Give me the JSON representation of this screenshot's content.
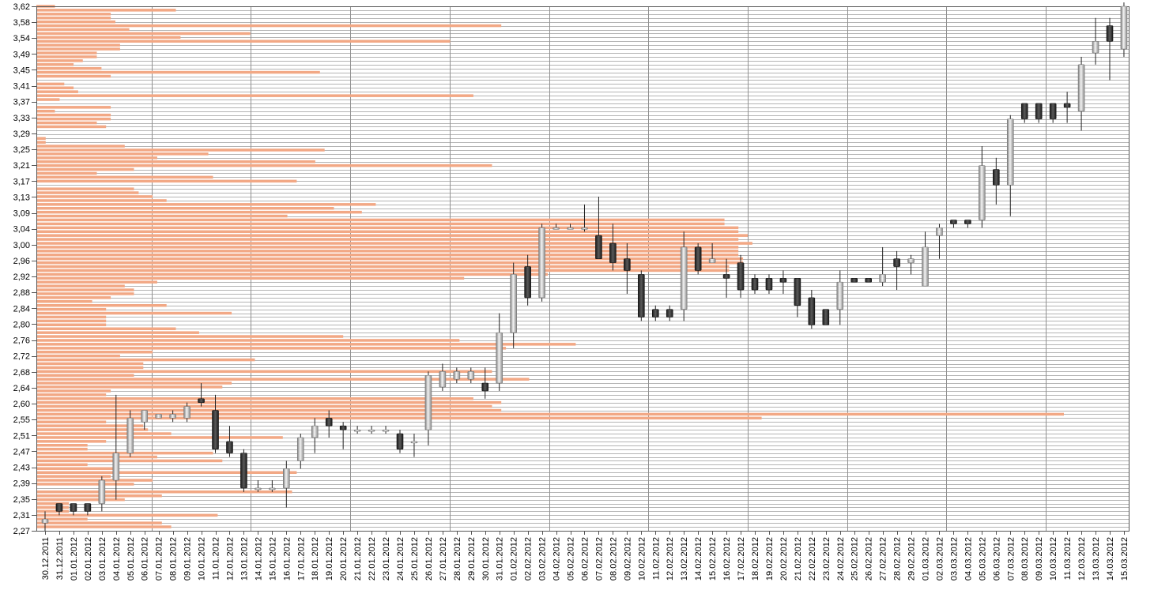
{
  "chart_data": {
    "type": "candlestick",
    "title": "",
    "xlabel": "",
    "ylabel": "",
    "ylim": [
      2.27,
      3.62
    ],
    "ytick_labels": [
      "3,62",
      "3,58",
      "3,54",
      "3,49",
      "3,45",
      "3,41",
      "3,37",
      "3,33",
      "3,29",
      "3,25",
      "3,21",
      "3,17",
      "3,13",
      "3,09",
      "3,04",
      "3,00",
      "2,96",
      "2,92",
      "2,88",
      "2,84",
      "2,80",
      "2,76",
      "2,72",
      "2,68",
      "2,64",
      "2,60",
      "2,55",
      "2,51",
      "2,47",
      "2,43",
      "2,39",
      "2,35",
      "2,31",
      "2,27"
    ],
    "categories": [
      "30.12.2011",
      "31.12.2011",
      "01.01.2012",
      "02.01.2012",
      "03.01.2012",
      "04.01.2012",
      "05.01.2012",
      "06.01.2012",
      "07.01.2012",
      "08.01.2012",
      "09.01.2012",
      "10.01.2012",
      "11.01.2012",
      "12.01.2012",
      "13.01.2012",
      "14.01.2012",
      "15.01.2012",
      "16.01.2012",
      "17.01.2012",
      "18.01.2012",
      "19.01.2012",
      "20.01.2012",
      "21.01.2012",
      "22.01.2012",
      "23.01.2012",
      "24.01.2012",
      "25.01.2012",
      "26.01.2012",
      "27.01.2012",
      "28.01.2012",
      "29.01.2012",
      "30.01.2012",
      "31.01.2012",
      "01.02.2012",
      "02.02.2012",
      "03.02.2012",
      "04.02.2012",
      "05.02.2012",
      "06.02.2012",
      "07.02.2012",
      "08.02.2012",
      "09.02.2012",
      "10.02.2012",
      "11.02.2012",
      "12.02.2012",
      "13.02.2012",
      "14.02.2012",
      "15.02.2012",
      "16.02.2012",
      "17.02.2012",
      "18.02.2012",
      "19.02.2012",
      "20.02.2012",
      "21.02.2012",
      "22.02.2012",
      "23.02.2012",
      "24.02.2012",
      "25.02.2012",
      "26.02.2012",
      "27.02.2012",
      "28.02.2012",
      "29.02.2012",
      "01.03.2012",
      "02.03.2012",
      "03.03.2012",
      "04.03.2012",
      "05.03.2012",
      "06.03.2012",
      "07.03.2012",
      "08.03.2012",
      "09.03.2012",
      "10.03.2012",
      "11.03.2012",
      "12.03.2012",
      "13.03.2012",
      "14.03.2012",
      "15.03.2012"
    ],
    "candles": [
      {
        "o": 2.29,
        "h": 2.32,
        "l": 2.27,
        "c": 2.3
      },
      {
        "o": 2.34,
        "h": 2.34,
        "l": 2.31,
        "c": 2.32
      },
      {
        "o": 2.34,
        "h": 2.34,
        "l": 2.31,
        "c": 2.32
      },
      {
        "o": 2.34,
        "h": 2.34,
        "l": 2.31,
        "c": 2.32
      },
      {
        "o": 2.34,
        "h": 2.41,
        "l": 2.32,
        "c": 2.4
      },
      {
        "o": 2.4,
        "h": 2.62,
        "l": 2.35,
        "c": 2.47
      },
      {
        "o": 2.47,
        "h": 2.58,
        "l": 2.46,
        "c": 2.56
      },
      {
        "o": 2.55,
        "h": 2.58,
        "l": 2.53,
        "c": 2.58
      },
      {
        "o": 2.56,
        "h": 2.57,
        "l": 2.56,
        "c": 2.57
      },
      {
        "o": 2.56,
        "h": 2.58,
        "l": 2.55,
        "c": 2.57
      },
      {
        "o": 2.56,
        "h": 2.6,
        "l": 2.55,
        "c": 2.59
      },
      {
        "o": 2.61,
        "h": 2.65,
        "l": 2.59,
        "c": 2.6
      },
      {
        "o": 2.58,
        "h": 2.62,
        "l": 2.47,
        "c": 2.48
      },
      {
        "o": 2.5,
        "h": 2.54,
        "l": 2.46,
        "c": 2.47
      },
      {
        "o": 2.47,
        "h": 2.48,
        "l": 2.37,
        "c": 2.38
      },
      {
        "o": 2.38,
        "h": 2.4,
        "l": 2.37,
        "c": 2.38
      },
      {
        "o": 2.38,
        "h": 2.4,
        "l": 2.37,
        "c": 2.38
      },
      {
        "o": 2.38,
        "h": 2.45,
        "l": 2.33,
        "c": 2.43
      },
      {
        "o": 2.45,
        "h": 2.52,
        "l": 2.43,
        "c": 2.51
      },
      {
        "o": 2.51,
        "h": 2.56,
        "l": 2.47,
        "c": 2.54
      },
      {
        "o": 2.56,
        "h": 2.58,
        "l": 2.51,
        "c": 2.54
      },
      {
        "o": 2.54,
        "h": 2.55,
        "l": 2.48,
        "c": 2.53
      },
      {
        "o": 2.53,
        "h": 2.54,
        "l": 2.52,
        "c": 2.53
      },
      {
        "o": 2.53,
        "h": 2.54,
        "l": 2.52,
        "c": 2.53
      },
      {
        "o": 2.53,
        "h": 2.54,
        "l": 2.52,
        "c": 2.53
      },
      {
        "o": 2.52,
        "h": 2.53,
        "l": 2.47,
        "c": 2.48
      },
      {
        "o": 2.5,
        "h": 2.52,
        "l": 2.46,
        "c": 2.5
      },
      {
        "o": 2.53,
        "h": 2.68,
        "l": 2.49,
        "c": 2.67
      },
      {
        "o": 2.64,
        "h": 2.7,
        "l": 2.63,
        "c": 2.68
      },
      {
        "o": 2.66,
        "h": 2.69,
        "l": 2.65,
        "c": 2.68
      },
      {
        "o": 2.66,
        "h": 2.69,
        "l": 2.65,
        "c": 2.68
      },
      {
        "o": 2.65,
        "h": 2.69,
        "l": 2.61,
        "c": 2.63
      },
      {
        "o": 2.65,
        "h": 2.83,
        "l": 2.63,
        "c": 2.78
      },
      {
        "o": 2.78,
        "h": 2.96,
        "l": 2.74,
        "c": 2.93
      },
      {
        "o": 2.95,
        "h": 2.98,
        "l": 2.85,
        "c": 2.87
      },
      {
        "o": 2.87,
        "h": 3.06,
        "l": 2.86,
        "c": 3.05
      },
      {
        "o": 3.05,
        "h": 3.06,
        "l": 3.05,
        "c": 3.05
      },
      {
        "o": 3.05,
        "h": 3.06,
        "l": 3.05,
        "c": 3.05
      },
      {
        "o": 3.05,
        "h": 3.11,
        "l": 3.04,
        "c": 3.05
      },
      {
        "o": 3.03,
        "h": 3.13,
        "l": 2.97,
        "c": 2.97
      },
      {
        "o": 3.01,
        "h": 3.06,
        "l": 2.94,
        "c": 2.96
      },
      {
        "o": 2.97,
        "h": 3.01,
        "l": 2.88,
        "c": 2.94
      },
      {
        "o": 2.93,
        "h": 2.94,
        "l": 2.81,
        "c": 2.82
      },
      {
        "o": 2.84,
        "h": 2.85,
        "l": 2.81,
        "c": 2.82
      },
      {
        "o": 2.84,
        "h": 2.85,
        "l": 2.81,
        "c": 2.82
      },
      {
        "o": 2.84,
        "h": 3.04,
        "l": 2.81,
        "c": 3.0
      },
      {
        "o": 3.0,
        "h": 3.01,
        "l": 2.93,
        "c": 2.94
      },
      {
        "o": 2.96,
        "h": 3.01,
        "l": 2.96,
        "c": 2.97
      },
      {
        "o": 2.93,
        "h": 2.97,
        "l": 2.87,
        "c": 2.92
      },
      {
        "o": 2.96,
        "h": 2.98,
        "l": 2.87,
        "c": 2.89
      },
      {
        "o": 2.92,
        "h": 2.93,
        "l": 2.88,
        "c": 2.89
      },
      {
        "o": 2.92,
        "h": 2.93,
        "l": 2.88,
        "c": 2.89
      },
      {
        "o": 2.92,
        "h": 2.94,
        "l": 2.88,
        "c": 2.91
      },
      {
        "o": 2.92,
        "h": 2.92,
        "l": 2.82,
        "c": 2.85
      },
      {
        "o": 2.87,
        "h": 2.89,
        "l": 2.79,
        "c": 2.8
      },
      {
        "o": 2.84,
        "h": 2.84,
        "l": 2.8,
        "c": 2.8
      },
      {
        "o": 2.84,
        "h": 2.94,
        "l": 2.8,
        "c": 2.91
      },
      {
        "o": 2.92,
        "h": 2.92,
        "l": 2.91,
        "c": 2.91
      },
      {
        "o": 2.92,
        "h": 2.92,
        "l": 2.91,
        "c": 2.91
      },
      {
        "o": 2.91,
        "h": 3.0,
        "l": 2.9,
        "c": 2.93
      },
      {
        "o": 2.97,
        "h": 2.99,
        "l": 2.89,
        "c": 2.95
      },
      {
        "o": 2.96,
        "h": 2.98,
        "l": 2.93,
        "c": 2.97
      },
      {
        "o": 2.9,
        "h": 3.04,
        "l": 2.9,
        "c": 3.0
      },
      {
        "o": 3.03,
        "h": 3.06,
        "l": 2.97,
        "c": 3.05
      },
      {
        "o": 3.07,
        "h": 3.07,
        "l": 3.05,
        "c": 3.06
      },
      {
        "o": 3.07,
        "h": 3.07,
        "l": 3.05,
        "c": 3.06
      },
      {
        "o": 3.07,
        "h": 3.26,
        "l": 3.05,
        "c": 3.21
      },
      {
        "o": 3.2,
        "h": 3.23,
        "l": 3.11,
        "c": 3.16
      },
      {
        "o": 3.16,
        "h": 3.34,
        "l": 3.08,
        "c": 3.33
      },
      {
        "o": 3.37,
        "h": 3.37,
        "l": 3.32,
        "c": 3.33
      },
      {
        "o": 3.37,
        "h": 3.37,
        "l": 3.32,
        "c": 3.33
      },
      {
        "o": 3.37,
        "h": 3.37,
        "l": 3.32,
        "c": 3.33
      },
      {
        "o": 3.37,
        "h": 3.4,
        "l": 3.32,
        "c": 3.36
      },
      {
        "o": 3.35,
        "h": 3.49,
        "l": 3.3,
        "c": 3.47
      },
      {
        "o": 3.5,
        "h": 3.59,
        "l": 3.47,
        "c": 3.53
      },
      {
        "o": 3.57,
        "h": 3.59,
        "l": 3.43,
        "c": 3.53
      },
      {
        "o": 3.51,
        "h": 3.63,
        "l": 3.49,
        "c": 3.62
      }
    ],
    "volume_profile": {
      "price_levels": [
        3.62,
        3.61,
        3.6,
        3.59,
        3.58,
        3.57,
        3.56,
        3.55,
        3.54,
        3.53,
        3.52,
        3.51,
        3.5,
        3.49,
        3.48,
        3.47,
        3.46,
        3.45,
        3.44,
        3.43,
        3.42,
        3.41,
        3.4,
        3.39,
        3.38,
        3.37,
        3.36,
        3.35,
        3.34,
        3.33,
        3.32,
        3.31,
        3.3,
        3.29,
        3.28,
        3.27,
        3.26,
        3.25,
        3.24,
        3.23,
        3.22,
        3.21,
        3.2,
        3.19,
        3.18,
        3.17,
        3.16,
        3.15,
        3.14,
        3.13,
        3.12,
        3.11,
        3.1,
        3.09,
        3.08,
        3.07,
        3.06,
        3.05,
        3.04,
        3.03,
        3.02,
        3.01,
        3.0,
        2.99,
        2.98,
        2.97,
        2.96,
        2.95,
        2.94,
        2.93,
        2.92,
        2.91,
        2.9,
        2.89,
        2.88,
        2.87,
        2.86,
        2.85,
        2.84,
        2.83,
        2.82,
        2.81,
        2.8,
        2.79,
        2.78,
        2.77,
        2.76,
        2.75,
        2.74,
        2.73,
        2.72,
        2.71,
        2.7,
        2.69,
        2.68,
        2.67,
        2.66,
        2.65,
        2.64,
        2.63,
        2.62,
        2.61,
        2.6,
        2.59,
        2.58,
        2.57,
        2.56,
        2.55,
        2.54,
        2.53,
        2.52,
        2.51,
        2.5,
        2.49,
        2.48,
        2.47,
        2.46,
        2.45,
        2.44,
        2.43,
        2.42,
        2.41,
        2.4,
        2.39,
        2.38,
        2.37,
        2.36,
        2.35,
        2.34,
        2.33,
        2.32,
        2.31,
        2.3,
        2.29,
        2.28
      ],
      "values": [
        0.04,
        0.3,
        0.16,
        0.16,
        0.17,
        1.0,
        0.2,
        0.46,
        0.31,
        0.89,
        0.18,
        0.18,
        0.13,
        0.13,
        0.1,
        0.08,
        0.14,
        0.61,
        0.16,
        0.0,
        0.06,
        0.08,
        0.09,
        0.94,
        0.05,
        0.0,
        0.16,
        0.04,
        0.16,
        0.16,
        0.13,
        0.15,
        0.0,
        0.0,
        0.02,
        0.02,
        0.19,
        0.62,
        0.37,
        0.26,
        0.6,
        0.98,
        0.21,
        0.13,
        0.38,
        0.56,
        0.0,
        0.21,
        0.22,
        0.25,
        0.28,
        0.73,
        0.64,
        0.7,
        0.54,
        1.48,
        1.48,
        1.51,
        1.51,
        1.53,
        1.51,
        1.54,
        1.51,
        1.51,
        1.51,
        1.52,
        1.52,
        1.49,
        1.49,
        1.1,
        0.92,
        0.26,
        0.19,
        0.21,
        0.21,
        0.16,
        0.12,
        0.28,
        0.15,
        0.42,
        0.15,
        0.15,
        0.15,
        0.3,
        0.35,
        0.66,
        0.91,
        1.16,
        1.01,
        0.25,
        0.18,
        0.47,
        0.23,
        0.23,
        0.98,
        0.21,
        1.06,
        0.42,
        0.4,
        0.16,
        0.15,
        0.94,
        1.0,
        0.98,
        1.0,
        2.21,
        1.56,
        0.15,
        0.23,
        0.24,
        0.29,
        0.53,
        0.15,
        0.11,
        0.11,
        0.38,
        0.26,
        0.4,
        0.11,
        0.17,
        0.56,
        0.16,
        0.25,
        0.21,
        0.0,
        0.55,
        0.27,
        0.19,
        0.07,
        0.07,
        0.07,
        0.39,
        0.11,
        0.27,
        0.29,
        0.03
      ]
    },
    "grid": true,
    "legend": "none"
  }
}
